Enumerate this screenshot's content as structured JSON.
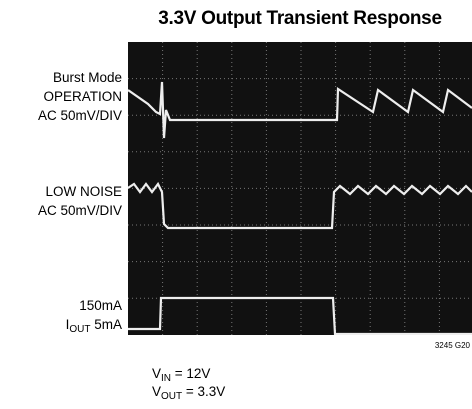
{
  "header": {
    "title": "3.3V Output Transient Response"
  },
  "labels": {
    "trace1": [
      "Burst Mode",
      "OPERATION",
      "AC 50mV/DIV"
    ],
    "trace2": [
      "LOW NOISE",
      "AC 50mV/DIV"
    ],
    "trace3": {
      "line1": "150mA",
      "line2": {
        "main": "I",
        "sub": "OUT",
        "rest": " 5mA"
      }
    }
  },
  "figure_id": "3245 G20",
  "conditions": [
    {
      "main": "V",
      "sub": "IN",
      "rest": " = 12V"
    },
    {
      "main": "V",
      "sub": "OUT",
      "rest": " = 3.3V"
    }
  ]
}
